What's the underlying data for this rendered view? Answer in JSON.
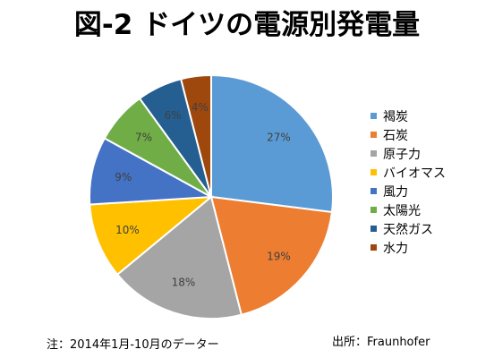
{
  "chart_data": {
    "type": "pie",
    "title": "図-2 ドイツの電源別発電量",
    "categories": [
      "褐炭",
      "石炭",
      "原子力",
      "バイオマス",
      "風力",
      "太陽光",
      "天然ガス",
      "水力"
    ],
    "values": [
      27,
      19,
      18,
      10,
      9,
      7,
      6,
      4
    ],
    "value_labels": [
      "27%",
      "19%",
      "18%",
      "10%",
      "9%",
      "7%",
      "6%",
      "4%"
    ],
    "colors": [
      "#5B9BD5",
      "#ED7D31",
      "#A5A5A5",
      "#FFC000",
      "#4472C4",
      "#70AD47",
      "#255E91",
      "#9E480E"
    ],
    "legend_position": "right"
  },
  "footnote": "注：2014年1月-10月のデーター",
  "source": "出所：Fraunhofer"
}
